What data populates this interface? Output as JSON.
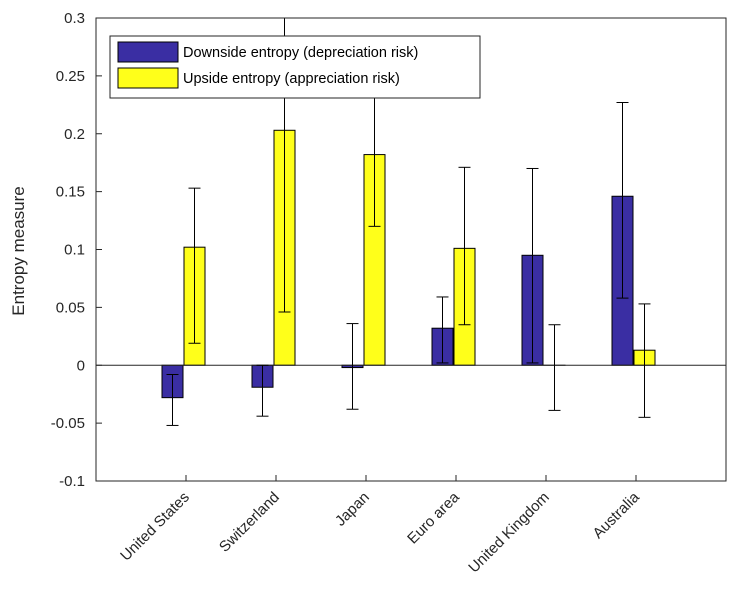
{
  "chart_data": {
    "type": "bar",
    "categories": [
      "United States",
      "Switzerland",
      "Japan",
      "Euro area",
      "United Kingdom",
      "Australia"
    ],
    "series": [
      {
        "name": "Downside entropy (depreciation risk)",
        "color": "#3a2ea3",
        "values": [
          -0.028,
          -0.019,
          -0.002,
          0.032,
          0.095,
          0.146
        ],
        "error_low": [
          -0.052,
          -0.044,
          -0.038,
          0.002,
          0.002,
          0.058
        ],
        "error_high": [
          -0.008,
          0.0,
          0.036,
          0.059,
          0.17,
          0.227
        ]
      },
      {
        "name": "Upside entropy (appreciation risk)",
        "color": "#ffff1a",
        "values": [
          0.102,
          0.203,
          0.182,
          0.101,
          0.0,
          0.013
        ],
        "error_low": [
          0.019,
          0.046,
          0.12,
          0.035,
          -0.039,
          -0.045
        ],
        "error_high": [
          0.153,
          0.36,
          0.25,
          0.171,
          0.035,
          0.053
        ]
      }
    ],
    "ylabel": "Entropy measure",
    "xlabel": "",
    "ylim": [
      -0.1,
      0.3
    ],
    "yticks": [
      "-0.1",
      "-0.05",
      "0",
      "0.05",
      "0.1",
      "0.15",
      "0.2",
      "0.25",
      "0.3"
    ],
    "ytick_values": [
      -0.1,
      -0.05,
      0,
      0.05,
      0.1,
      0.15,
      0.2,
      0.25,
      0.3
    ],
    "legend_position": "top-left",
    "grid": false
  }
}
